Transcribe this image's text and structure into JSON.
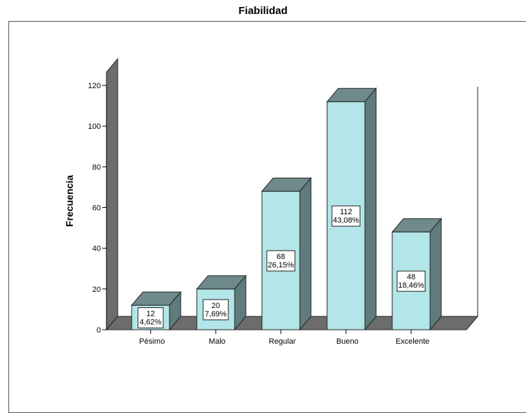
{
  "chart_data": {
    "type": "bar",
    "title": "Fiabilidad",
    "xlabel": "",
    "ylabel": "Frecuencia",
    "categories": [
      "Pésimo",
      "Malo",
      "Regular",
      "Bueno",
      "Excelente"
    ],
    "values": [
      12,
      20,
      68,
      112,
      48
    ],
    "percent_labels": [
      "4,62%",
      "7,69%",
      "26,15%",
      "43,08%",
      "18,46%"
    ],
    "ylim": [
      0,
      120
    ],
    "yticks": [
      "0",
      "20",
      "40",
      "60",
      "80",
      "100",
      "120"
    ],
    "grid": false,
    "style": "3d",
    "colors": {
      "front": "#b3e6e8",
      "top": "#6e8a8b",
      "side": "#5f7b7c",
      "wall": "#6c6c6c",
      "floor": "#6c6c6c"
    }
  }
}
